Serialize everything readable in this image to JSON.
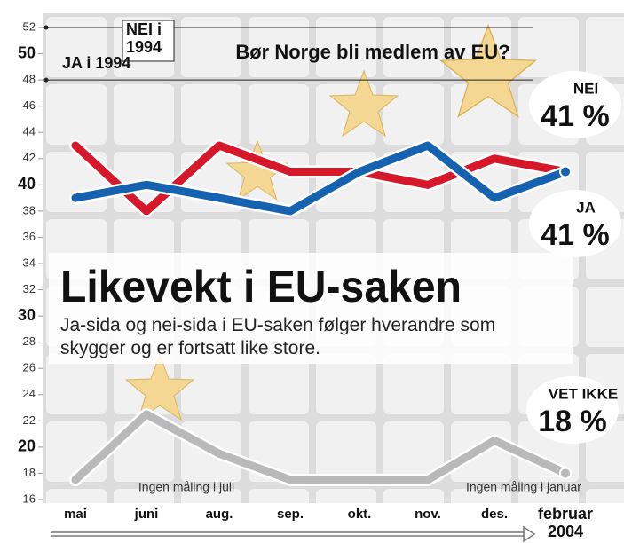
{
  "chart_data": {
    "type": "line",
    "title": "Bør Norge bli medlem av EU?",
    "headline": "Likevekt i EU-saken",
    "subtitle": "Ja-sida og nei-sida i EU-saken følger hverandre som\nskygger og er fortsatt like store.",
    "categories": [
      "mai",
      "juni",
      "aug.",
      "sep.",
      "okt.",
      "nov.",
      "des.",
      "februar\n2004"
    ],
    "series": [
      {
        "name": "NEI",
        "color": "#d7182a",
        "values": [
          43,
          38,
          43,
          41,
          41,
          40,
          42,
          41
        ],
        "end_label": "41 %"
      },
      {
        "name": "JA",
        "color": "#1462b0",
        "values": [
          39,
          40,
          39,
          38,
          41,
          43,
          39,
          41
        ],
        "end_label": "41 %"
      },
      {
        "name": "VET IKKE",
        "color": "#b9b9b9",
        "values": [
          17.5,
          22.5,
          19.5,
          17.5,
          17.5,
          17.5,
          20.5,
          18
        ],
        "end_label": "18 %"
      }
    ],
    "reference_lines": [
      {
        "label": "NEI i\n1994",
        "value": 52
      },
      {
        "label": "JA i 1994",
        "value": 48
      }
    ],
    "notes": [
      "Ingen måling i juli",
      "Ingen måling i januar"
    ],
    "ylim": [
      16,
      52
    ],
    "yticks": [
      16,
      18,
      20,
      22,
      24,
      26,
      28,
      30,
      32,
      34,
      36,
      38,
      40,
      42,
      44,
      46,
      48,
      50,
      52
    ]
  }
}
